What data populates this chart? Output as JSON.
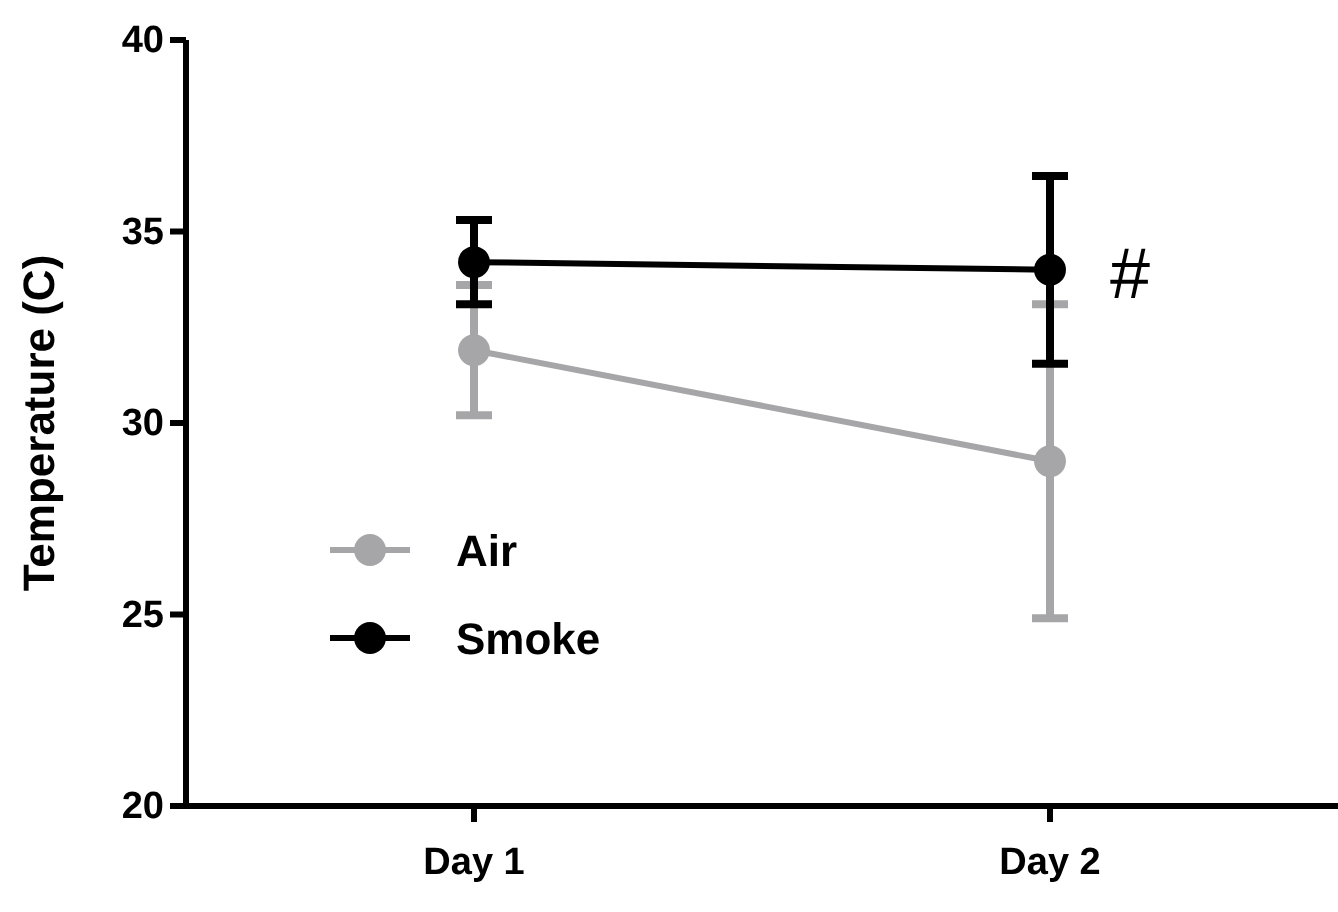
{
  "chart_data": {
    "type": "line",
    "ylabel": "Temperature (C)",
    "categories": [
      "Day 1",
      "Day 2"
    ],
    "series": [
      {
        "name": "Air",
        "color": "#a6a6a8",
        "values": [
          31.9,
          29.0
        ],
        "errors": [
          1.7,
          4.1
        ]
      },
      {
        "name": "Smoke",
        "color": "#000000",
        "values": [
          34.2,
          34.0
        ],
        "errors": [
          1.1,
          2.45
        ]
      }
    ],
    "ylim": [
      20,
      40
    ],
    "yticks": [
      20,
      25,
      30,
      35,
      40
    ],
    "grid": false,
    "legend": "bottom left",
    "marker": "circle",
    "line_style": "solid",
    "annotations": [
      {
        "text": "#",
        "x": "Day 2",
        "y": 34.0
      }
    ]
  }
}
